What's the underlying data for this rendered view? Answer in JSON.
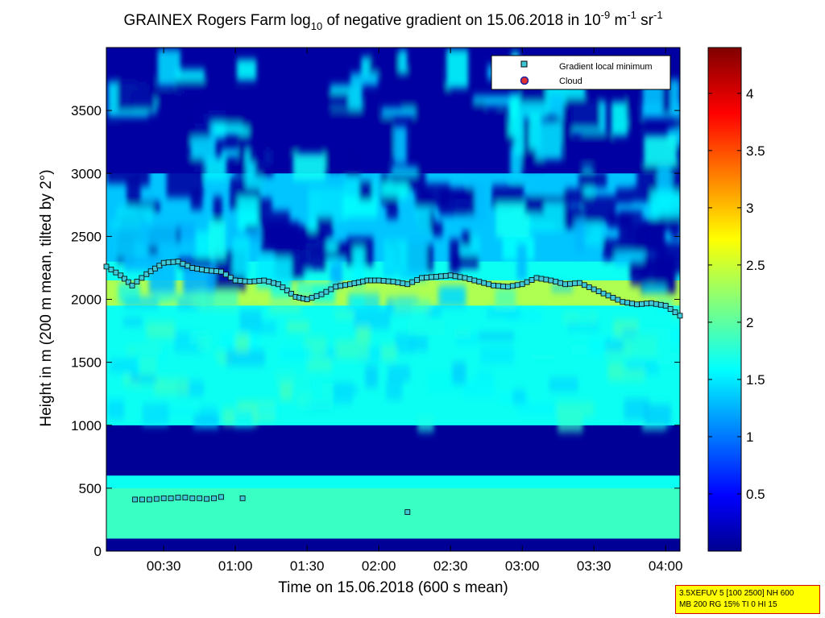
{
  "chart_data": {
    "type": "heatmap",
    "title": {
      "prefix": "GRAINEX Rogers Farm log",
      "prefix_sub": "10",
      "middle": " of negative gradient on 15.06.2018 in 10",
      "exp1": "-9",
      "unit_m": " m",
      "exp2": "-1",
      "unit_sr": " sr",
      "exp3": "-1"
    },
    "xlabel": "Time on 15.06.2018 (600 s mean)",
    "ylabel": "Height in m (200 m mean, tilted by 2°)",
    "x_range_hours": [
      0.1,
      4.1
    ],
    "y_range_m": [
      0,
      4000
    ],
    "x_ticks": [
      {
        "hours": 0.5,
        "label": "00:30"
      },
      {
        "hours": 1.0,
        "label": "01:00"
      },
      {
        "hours": 1.5,
        "label": "01:30"
      },
      {
        "hours": 2.0,
        "label": "02:00"
      },
      {
        "hours": 2.5,
        "label": "02:30"
      },
      {
        "hours": 3.0,
        "label": "03:00"
      },
      {
        "hours": 3.5,
        "label": "03:30"
      },
      {
        "hours": 4.0,
        "label": "04:00"
      }
    ],
    "y_ticks": [
      {
        "value": 0,
        "label": "0"
      },
      {
        "value": 500,
        "label": "500"
      },
      {
        "value": 1000,
        "label": "1000"
      },
      {
        "value": 1500,
        "label": "1500"
      },
      {
        "value": 2000,
        "label": "2000"
      },
      {
        "value": 2500,
        "label": "2500"
      },
      {
        "value": 3000,
        "label": "3000"
      },
      {
        "value": 3500,
        "label": "3500"
      }
    ],
    "colorbar": {
      "range": [
        0,
        4.4
      ],
      "ticks": [
        {
          "value": 0.5,
          "label": "0.5"
        },
        {
          "value": 1,
          "label": "1"
        },
        {
          "value": 1.5,
          "label": "1.5"
        },
        {
          "value": 2,
          "label": "2"
        },
        {
          "value": 2.5,
          "label": "2.5"
        },
        {
          "value": 3,
          "label": "3"
        },
        {
          "value": 3.5,
          "label": "3.5"
        },
        {
          "value": 4,
          "label": "4"
        }
      ]
    },
    "legend": {
      "placement": "top-right",
      "entries": [
        {
          "label": "Gradient local minimum",
          "marker": "square",
          "color": "#40c8d8"
        },
        {
          "label": "Cloud",
          "marker": "circle",
          "color": "#e03030"
        }
      ]
    },
    "gradient_minimum_series": {
      "name": "Gradient local minimum",
      "x_hours": [
        0.1,
        0.2,
        0.28,
        0.38,
        0.5,
        0.6,
        0.7,
        0.8,
        0.9,
        1.0,
        1.1,
        1.2,
        1.3,
        1.42,
        1.5,
        1.6,
        1.7,
        1.8,
        1.92,
        2.0,
        2.1,
        2.2,
        2.3,
        2.4,
        2.5,
        2.6,
        2.7,
        2.8,
        2.9,
        3.0,
        3.1,
        3.2,
        3.3,
        3.4,
        3.5,
        3.6,
        3.7,
        3.8,
        3.9,
        4.0,
        4.1
      ],
      "y_m": [
        2260,
        2190,
        2110,
        2200,
        2290,
        2300,
        2250,
        2230,
        2220,
        2150,
        2140,
        2150,
        2120,
        2020,
        2000,
        2040,
        2100,
        2120,
        2150,
        2150,
        2140,
        2120,
        2170,
        2180,
        2190,
        2170,
        2140,
        2110,
        2100,
        2120,
        2170,
        2150,
        2120,
        2130,
        2080,
        2030,
        1980,
        1960,
        1970,
        1950,
        1870
      ]
    },
    "low_gradient_minima": {
      "x_hours": [
        0.3,
        0.35,
        0.4,
        0.45,
        0.5,
        0.55,
        0.6,
        0.65,
        0.7,
        0.75,
        0.8,
        0.85,
        0.9,
        1.05,
        2.2
      ],
      "y_m": [
        410,
        410,
        410,
        415,
        420,
        420,
        425,
        425,
        420,
        420,
        415,
        420,
        430,
        420,
        310
      ]
    },
    "heatmap_fields": {
      "background_level": 1.7,
      "layers": [
        {
          "name": "surface-low",
          "y_m": [
            0,
            100
          ],
          "level": 0.1
        },
        {
          "name": "near-surface",
          "y_m": [
            100,
            500
          ],
          "level": 1.9
        },
        {
          "name": "low-gradient-band",
          "y_m": [
            600,
            1000
          ],
          "level": 0.1
        },
        {
          "name": "boundary-layer",
          "y_m": [
            1000,
            2200
          ],
          "level": 1.7
        },
        {
          "name": "entrainment",
          "y_m": [
            1950,
            2150
          ],
          "level": 2.4
        },
        {
          "name": "free-troposphere",
          "y_m": [
            2300,
            3000
          ],
          "level": 1.4
        },
        {
          "name": "aloft",
          "y_m": [
            3000,
            4000
          ],
          "level": 0.15
        }
      ]
    }
  },
  "info_box": {
    "line1": "3.5XEFUV 5 [100 2500] NH 600",
    "line2": "MB 200 RG 15% TI 0 HI 15"
  }
}
